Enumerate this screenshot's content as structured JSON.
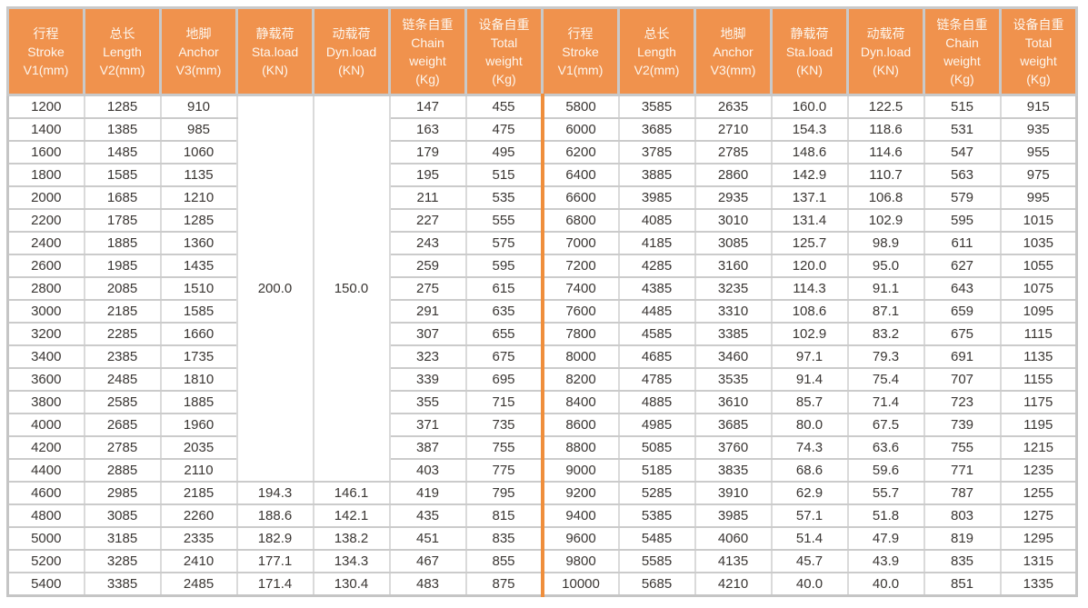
{
  "colors": {
    "header_bg": "#F0924D",
    "header_text": "#FDF6EE",
    "divider_orange": "#EF8E3C",
    "grid_horizontal": "#CBCBCB",
    "grid_vertical": "#DADADA",
    "outer_border": "#C5C5C5",
    "header_grid": "#C9C9C9",
    "data_text": "#3A3633",
    "page_bg": "#FFFFFF"
  },
  "table": {
    "columns": [
      {
        "key": "stroke",
        "lines": [
          "行程",
          "Stroke",
          "V1(mm)"
        ]
      },
      {
        "key": "length",
        "lines": [
          "总长",
          "Length",
          "V2(mm)"
        ]
      },
      {
        "key": "anchor",
        "lines": [
          "地脚",
          "Anchor",
          "V3(mm)"
        ]
      },
      {
        "key": "sta-load",
        "lines": [
          "静载荷",
          "Sta.load",
          "(KN)"
        ]
      },
      {
        "key": "dyn-load",
        "lines": [
          "动载荷",
          "Dyn.load",
          "(KN)"
        ]
      },
      {
        "key": "chain-weight",
        "lines": [
          "链条自重",
          "Chain",
          "weight",
          "(Kg)"
        ]
      },
      {
        "key": "total-weight",
        "lines": [
          "设备自重",
          "Total",
          "weight",
          "(Kg)"
        ]
      }
    ],
    "left": {
      "merged": {
        "sta_load": "200.0",
        "dyn_load": "150.0",
        "row_span": 17
      },
      "rows": [
        [
          "1200",
          "1285",
          "910",
          null,
          null,
          "147",
          "455"
        ],
        [
          "1400",
          "1385",
          "985",
          null,
          null,
          "163",
          "475"
        ],
        [
          "1600",
          "1485",
          "1060",
          null,
          null,
          "179",
          "495"
        ],
        [
          "1800",
          "1585",
          "1135",
          null,
          null,
          "195",
          "515"
        ],
        [
          "2000",
          "1685",
          "1210",
          null,
          null,
          "211",
          "535"
        ],
        [
          "2200",
          "1785",
          "1285",
          null,
          null,
          "227",
          "555"
        ],
        [
          "2400",
          "1885",
          "1360",
          null,
          null,
          "243",
          "575"
        ],
        [
          "2600",
          "1985",
          "1435",
          null,
          null,
          "259",
          "595"
        ],
        [
          "2800",
          "2085",
          "1510",
          null,
          null,
          "275",
          "615"
        ],
        [
          "3000",
          "2185",
          "1585",
          null,
          null,
          "291",
          "635"
        ],
        [
          "3200",
          "2285",
          "1660",
          null,
          null,
          "307",
          "655"
        ],
        [
          "3400",
          "2385",
          "1735",
          null,
          null,
          "323",
          "675"
        ],
        [
          "3600",
          "2485",
          "1810",
          null,
          null,
          "339",
          "695"
        ],
        [
          "3800",
          "2585",
          "1885",
          null,
          null,
          "355",
          "715"
        ],
        [
          "4000",
          "2685",
          "1960",
          null,
          null,
          "371",
          "735"
        ],
        [
          "4200",
          "2785",
          "2035",
          null,
          null,
          "387",
          "755"
        ],
        [
          "4400",
          "2885",
          "2110",
          null,
          null,
          "403",
          "775"
        ],
        [
          "4600",
          "2985",
          "2185",
          "194.3",
          "146.1",
          "419",
          "795"
        ],
        [
          "4800",
          "3085",
          "2260",
          "188.6",
          "142.1",
          "435",
          "815"
        ],
        [
          "5000",
          "3185",
          "2335",
          "182.9",
          "138.2",
          "451",
          "835"
        ],
        [
          "5200",
          "3285",
          "2410",
          "177.1",
          "134.3",
          "467",
          "855"
        ],
        [
          "5400",
          "3385",
          "2485",
          "171.4",
          "130.4",
          "483",
          "875"
        ]
      ]
    },
    "right": {
      "rows": [
        [
          "5800",
          "3585",
          "2635",
          "160.0",
          "122.5",
          "515",
          "915"
        ],
        [
          "6000",
          "3685",
          "2710",
          "154.3",
          "118.6",
          "531",
          "935"
        ],
        [
          "6200",
          "3785",
          "2785",
          "148.6",
          "114.6",
          "547",
          "955"
        ],
        [
          "6400",
          "3885",
          "2860",
          "142.9",
          "110.7",
          "563",
          "975"
        ],
        [
          "6600",
          "3985",
          "2935",
          "137.1",
          "106.8",
          "579",
          "995"
        ],
        [
          "6800",
          "4085",
          "3010",
          "131.4",
          "102.9",
          "595",
          "1015"
        ],
        [
          "7000",
          "4185",
          "3085",
          "125.7",
          "98.9",
          "611",
          "1035"
        ],
        [
          "7200",
          "4285",
          "3160",
          "120.0",
          "95.0",
          "627",
          "1055"
        ],
        [
          "7400",
          "4385",
          "3235",
          "114.3",
          "91.1",
          "643",
          "1075"
        ],
        [
          "7600",
          "4485",
          "3310",
          "108.6",
          "87.1",
          "659",
          "1095"
        ],
        [
          "7800",
          "4585",
          "3385",
          "102.9",
          "83.2",
          "675",
          "1115"
        ],
        [
          "8000",
          "4685",
          "3460",
          "97.1",
          "79.3",
          "691",
          "1135"
        ],
        [
          "8200",
          "4785",
          "3535",
          "91.4",
          "75.4",
          "707",
          "1155"
        ],
        [
          "8400",
          "4885",
          "3610",
          "85.7",
          "71.4",
          "723",
          "1175"
        ],
        [
          "8600",
          "4985",
          "3685",
          "80.0",
          "67.5",
          "739",
          "1195"
        ],
        [
          "8800",
          "5085",
          "3760",
          "74.3",
          "63.6",
          "755",
          "1215"
        ],
        [
          "9000",
          "5185",
          "3835",
          "68.6",
          "59.6",
          "771",
          "1235"
        ],
        [
          "9200",
          "5285",
          "3910",
          "62.9",
          "55.7",
          "787",
          "1255"
        ],
        [
          "9400",
          "5385",
          "3985",
          "57.1",
          "51.8",
          "803",
          "1275"
        ],
        [
          "9600",
          "5485",
          "4060",
          "51.4",
          "47.9",
          "819",
          "1295"
        ],
        [
          "9800",
          "5585",
          "4135",
          "45.7",
          "43.9",
          "835",
          "1315"
        ],
        [
          "10000",
          "5685",
          "4210",
          "40.0",
          "40.0",
          "851",
          "1335"
        ]
      ]
    }
  }
}
